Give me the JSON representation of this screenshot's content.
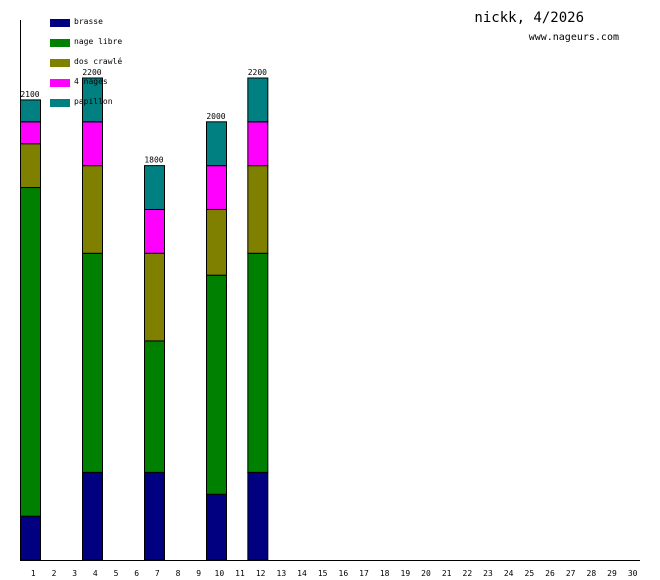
{
  "title": "nickk, 4/2026",
  "site": "www.nageurs.com",
  "legend": [
    {
      "label": "brasse",
      "color": "#000080"
    },
    {
      "label": "nage libre",
      "color": "#008000"
    },
    {
      "label": "dos crawlé",
      "color": "#808000"
    },
    {
      "label": "4 nages",
      "color": "#ff00ff"
    },
    {
      "label": "papillon",
      "color": "#008080"
    }
  ],
  "chart_data": {
    "type": "bar",
    "stacked": true,
    "categories": [
      "1",
      "2",
      "3",
      "4",
      "5",
      "6",
      "7",
      "8",
      "9",
      "10",
      "11",
      "12",
      "13",
      "14",
      "15",
      "16",
      "17",
      "18",
      "19",
      "20",
      "21",
      "22",
      "23",
      "24",
      "25",
      "26",
      "27",
      "28",
      "29",
      "30"
    ],
    "series": [
      {
        "name": "brasse",
        "color": "#000080",
        "values": [
          200,
          0,
          0,
          400,
          0,
          0,
          400,
          0,
          0,
          300,
          0,
          400,
          0,
          0,
          0,
          0,
          0,
          0,
          0,
          0,
          0,
          0,
          0,
          0,
          0,
          0,
          0,
          0,
          0,
          0
        ]
      },
      {
        "name": "nage libre",
        "color": "#008000",
        "values": [
          1500,
          0,
          0,
          1000,
          0,
          0,
          600,
          0,
          0,
          1000,
          0,
          1000,
          0,
          0,
          0,
          0,
          0,
          0,
          0,
          0,
          0,
          0,
          0,
          0,
          0,
          0,
          0,
          0,
          0,
          0
        ]
      },
      {
        "name": "dos crawlé",
        "color": "#808000",
        "values": [
          200,
          0,
          0,
          400,
          0,
          0,
          400,
          0,
          0,
          300,
          0,
          400,
          0,
          0,
          0,
          0,
          0,
          0,
          0,
          0,
          0,
          0,
          0,
          0,
          0,
          0,
          0,
          0,
          0,
          0
        ]
      },
      {
        "name": "4 nages",
        "color": "#ff00ff",
        "values": [
          100,
          0,
          0,
          200,
          0,
          0,
          200,
          0,
          0,
          200,
          0,
          200,
          0,
          0,
          0,
          0,
          0,
          0,
          0,
          0,
          0,
          0,
          0,
          0,
          0,
          0,
          0,
          0,
          0,
          0
        ]
      },
      {
        "name": "papillon",
        "color": "#008080",
        "values": [
          100,
          0,
          0,
          200,
          0,
          0,
          200,
          0,
          0,
          200,
          0,
          200,
          0,
          0,
          0,
          0,
          0,
          0,
          0,
          0,
          0,
          0,
          0,
          0,
          0,
          0,
          0,
          0,
          0,
          0
        ]
      }
    ],
    "totals": [
      2100,
      0,
      0,
      2200,
      0,
      0,
      1800,
      0,
      0,
      2000,
      0,
      2200,
      0,
      0,
      0,
      0,
      0,
      0,
      0,
      0,
      0,
      0,
      0,
      0,
      0,
      0,
      0,
      0,
      0,
      0
    ],
    "ylim": [
      0,
      2200
    ],
    "grid": false,
    "legend_position": "top-left"
  }
}
